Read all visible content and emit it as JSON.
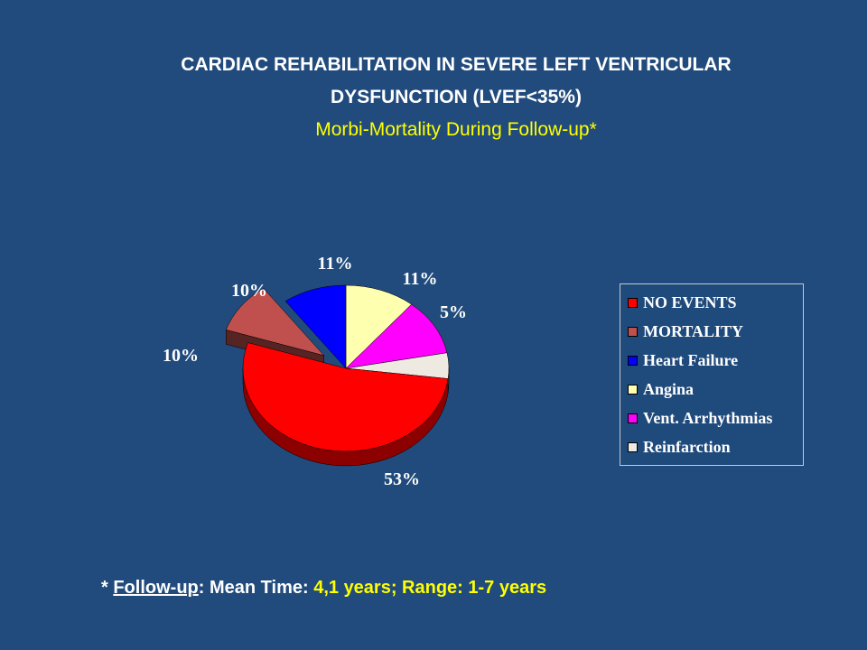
{
  "title": {
    "line1": "CARDIAC REHABILITATION IN SEVERE LEFT VENTRICULAR",
    "line2": "DYSFUNCTION (LVEF<35%)",
    "subtitle": "Morbi-Mortality During Follow-up*"
  },
  "chart_data": {
    "type": "pie",
    "style": "3d-exploded",
    "categories": [
      "NO  EVENTS",
      "MORTALITY",
      "Heart Failure",
      "Angina",
      "Vent. Arrhythmias",
      "Reinfarction"
    ],
    "values": [
      53,
      10,
      10,
      11,
      11,
      5
    ],
    "labels": [
      "53%",
      "10%",
      "10%",
      "11%",
      "11%",
      "5%"
    ],
    "colors": [
      "#ff0000",
      "#c0504d",
      "#0000ff",
      "#ffffb0",
      "#ff00ff",
      "#eeeae2"
    ],
    "legend_position": "right"
  },
  "legend": {
    "items": [
      {
        "label": "NO  EVENTS",
        "color": "#ff0000"
      },
      {
        "label": "MORTALITY",
        "color": "#c0504d"
      },
      {
        "label": "Heart Failure",
        "color": "#0000ff"
      },
      {
        "label": "Angina",
        "color": "#ffffb0"
      },
      {
        "label": "Vent. Arrhythmias",
        "color": "#ff00ff"
      },
      {
        "label": "Reinfarction",
        "color": "#eeeae2"
      }
    ]
  },
  "footnote": {
    "star": "* ",
    "term": "Follow-up",
    "colon": ": Mean Time: ",
    "mean": "4,1 years; Range: 1-7 years"
  }
}
